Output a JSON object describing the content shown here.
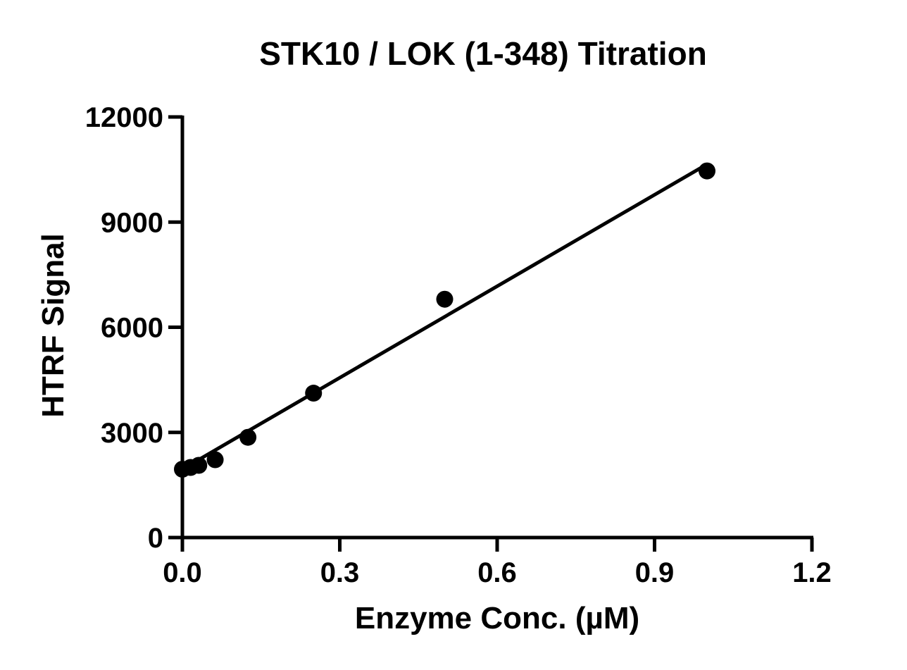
{
  "chart_data": {
    "type": "scatter",
    "title": "STK10 / LOK (1-348) Titration",
    "xlabel": "Enzyme Conc. (µM)",
    "ylabel": "HTRF Signal",
    "xlim": [
      0,
      1.2
    ],
    "ylim": [
      0,
      12000
    ],
    "xticks": [
      "0.0",
      "0.3",
      "0.6",
      "0.9",
      "1.2"
    ],
    "yticks": [
      "0",
      "3000",
      "6000",
      "9000",
      "12000"
    ],
    "grid": false,
    "points": {
      "x": [
        0,
        0.0156,
        0.03125,
        0.0625,
        0.125,
        0.25,
        0.5,
        1.0
      ],
      "y": [
        1950,
        2000,
        2060,
        2220,
        2860,
        4120,
        6800,
        10460
      ]
    },
    "fit_line": {
      "type": "linear",
      "intercept": 1950,
      "slope": 8700,
      "x_range": [
        0,
        1.0
      ]
    },
    "color": "#000000"
  }
}
